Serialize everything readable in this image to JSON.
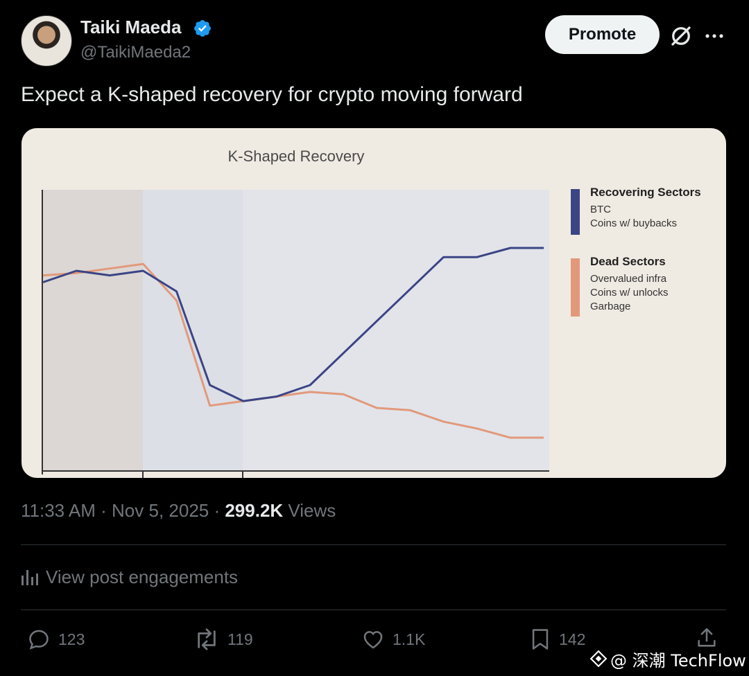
{
  "author": {
    "name": "Taiki Maeda",
    "handle": "@TaikiMaeda2"
  },
  "header": {
    "promote_label": "Promote",
    "icons": [
      "verified-badge-icon",
      "grok-icon",
      "more-icon"
    ]
  },
  "tweet": {
    "text": "Expect a K-shaped recovery for crypto moving forward"
  },
  "meta": {
    "time_date": "11:33 AM · Nov 5, 2025 · ",
    "views_count": "299.2K",
    "views_label": " Views"
  },
  "engagements": {
    "label": "View post engagements"
  },
  "actions": {
    "replies": "123",
    "reposts": "119",
    "likes": "1.1K",
    "bookmarks": "142"
  },
  "watermark": {
    "text": "@ 深潮 TechFlow"
  },
  "colors": {
    "accent_blue": "#1d9bf0",
    "recovering_line": "#3b4485",
    "dead_line": "#e2997b",
    "chart_bg": "#efeae2"
  },
  "chart_data": {
    "type": "line",
    "title": "K-Shaped Recovery",
    "xlabel": "",
    "ylabel": "",
    "x": [
      0,
      1,
      2,
      3,
      4,
      5,
      6,
      7,
      8,
      9,
      10,
      11,
      12,
      13,
      14,
      15
    ],
    "ylim": [
      0,
      100
    ],
    "grid": false,
    "legend_position": "right",
    "series": [
      {
        "name": "Recovering Sectors",
        "legend_items": [
          "BTC",
          "Coins w/ buybacks"
        ],
        "color": "#3b4485",
        "values": [
          75,
          80,
          78,
          80,
          71,
          30,
          23,
          25,
          30,
          44,
          58,
          72,
          86,
          86,
          90,
          90
        ]
      },
      {
        "name": "Dead Sectors",
        "legend_items": [
          "Overvalued infra",
          "Coins w/ unlocks",
          "Garbage"
        ],
        "color": "#e2997b",
        "values": [
          78,
          79,
          81,
          83,
          67,
          21,
          23,
          25,
          27,
          26,
          20,
          19,
          14,
          11,
          7,
          7
        ]
      }
    ]
  }
}
